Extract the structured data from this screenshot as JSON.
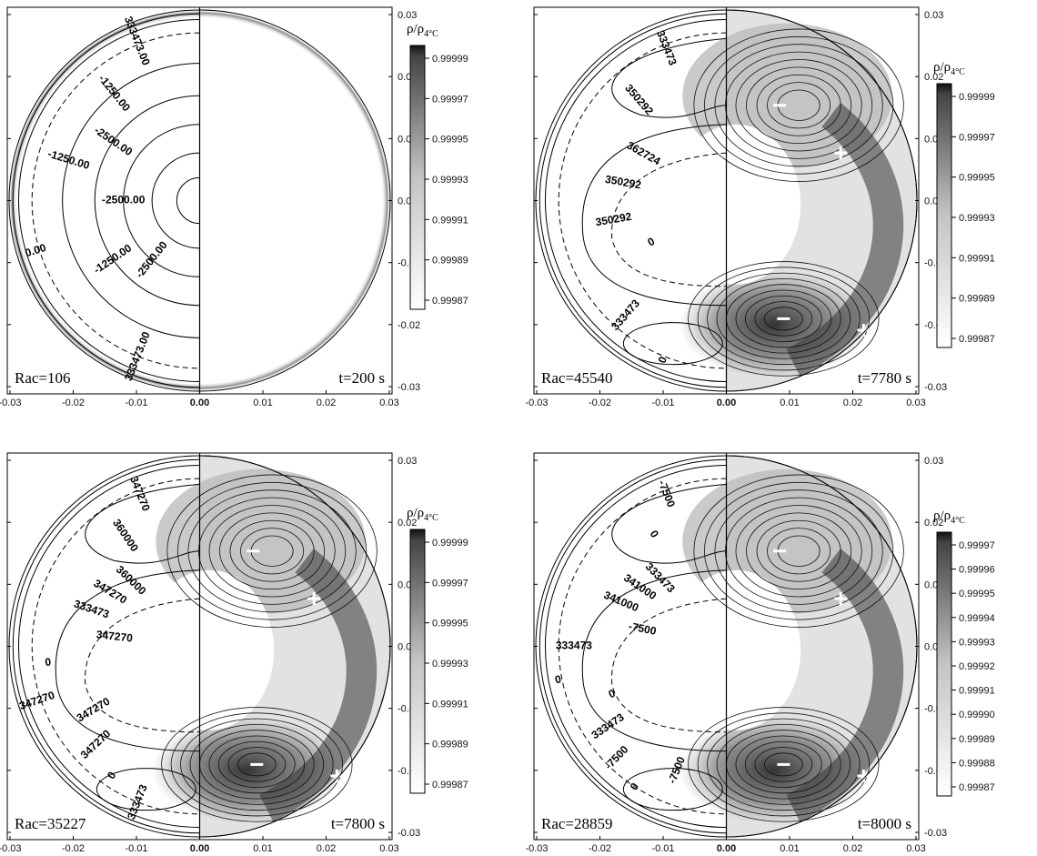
{
  "chart_data": [
    {
      "type": "heatmap",
      "rac_label": "Rac=106",
      "time_label": "t=200 s",
      "x_ticks": [
        "-0.03",
        "-0.02",
        "-0.01",
        "0.00",
        "0.01",
        "0.02",
        "0.03"
      ],
      "y_ticks": [
        "0.03",
        "0.02",
        "0.01",
        "0.00",
        "-0.01",
        "-0.02",
        "-0.03"
      ],
      "contour_labels": [
        "333473.00",
        "-1250.00",
        "-2500.00",
        "-1250.00",
        "-2500.00",
        "0.00",
        "-1250.00",
        "-2500.00",
        "333473.00"
      ],
      "colorbar": {
        "title_main": "ρ/ρ",
        "title_sub": "4°C",
        "ticks": [
          "0.99999",
          "0.99997",
          "0.99995",
          "0.99993",
          "0.99991",
          "0.99989",
          "0.99987"
        ]
      }
    },
    {
      "type": "heatmap",
      "rac_label": "Rac=45540",
      "time_label": "t=7780 s",
      "x_ticks": [
        "-0.03",
        "-0.02",
        "-0.01",
        "0.00",
        "0.01",
        "0.02",
        "0.03"
      ],
      "y_ticks": [
        "0.03",
        "0.02",
        "0.01",
        "0.00",
        "-0.01",
        "-0.02",
        "-0.03"
      ],
      "contour_labels": [
        "333473",
        "350292",
        "362724",
        "350292",
        "350292",
        "0",
        "333473",
        "0"
      ],
      "colorbar": {
        "title_main": "ρ/ρ",
        "title_sub": "4°C",
        "ticks": [
          "0.99999",
          "0.99997",
          "0.99995",
          "0.99993",
          "0.99991",
          "0.99989",
          "0.99987"
        ]
      }
    },
    {
      "type": "heatmap",
      "rac_label": "Rac=35227",
      "time_label": "t=7800 s",
      "x_ticks": [
        "-0.03",
        "-0.02",
        "-0.01",
        "0.00",
        "0.01",
        "0.02",
        "0.03"
      ],
      "y_ticks": [
        "0.03",
        "0.02",
        "0.01",
        "0.00",
        "-0.01",
        "-0.02",
        "-0.03"
      ],
      "contour_labels": [
        "347270",
        "360000",
        "360000",
        "347270",
        "333473",
        "347270",
        "0",
        "347270",
        "347270",
        "347270",
        "0",
        "333473"
      ],
      "colorbar": {
        "title_main": "ρ/ρ",
        "title_sub": "4°C",
        "ticks": [
          "0.99999",
          "0.99997",
          "0.99995",
          "0.99993",
          "0.99991",
          "0.99989",
          "0.99987"
        ]
      }
    },
    {
      "type": "heatmap",
      "rac_label": "Rac=28859",
      "time_label": "t=8000 s",
      "x_ticks": [
        "-0.03",
        "-0.02",
        "-0.01",
        "0.00",
        "0.01",
        "0.02",
        "0.03"
      ],
      "y_ticks": [
        "0.03",
        "0.02",
        "0.01",
        "0.00",
        "-0.01",
        "-0.02",
        "-0.03"
      ],
      "contour_labels": [
        "-7500",
        "0",
        "333473",
        "341000",
        "341000",
        "-7500",
        "333473",
        "0",
        "0",
        "333473",
        "-7500",
        "0",
        "-7500"
      ],
      "colorbar": {
        "title_main": "ρ/ρ",
        "title_sub": "4°C",
        "ticks": [
          "0.99997",
          "0.99996",
          "0.99995",
          "0.99994",
          "0.99993",
          "0.99992",
          "0.99991",
          "0.99990",
          "0.99989",
          "0.99988",
          "0.99987"
        ]
      }
    }
  ]
}
